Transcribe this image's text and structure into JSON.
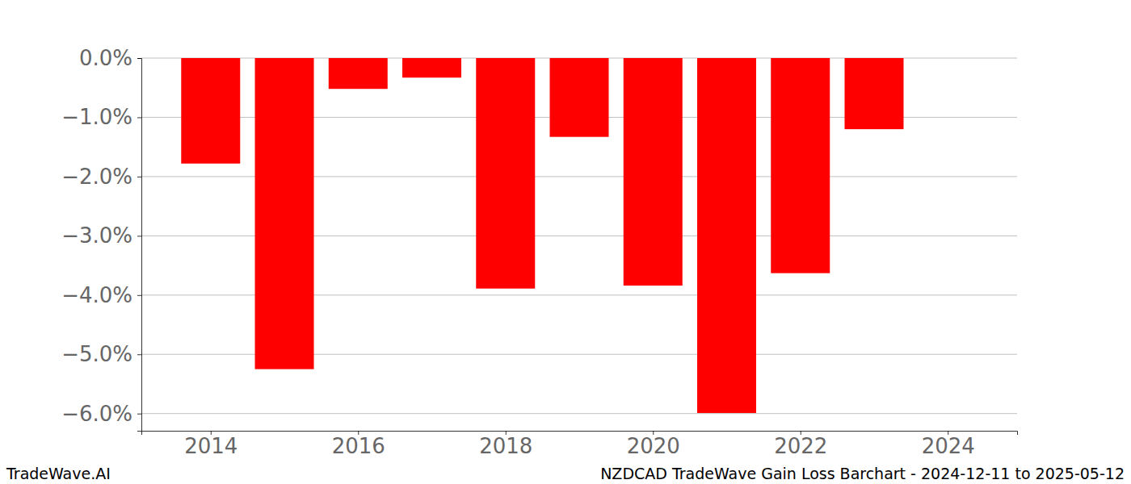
{
  "chart_data": {
    "type": "bar",
    "title": "NZDCAD TradeWave Gain Loss Barchart - 2024-12-11 to 2025-05-12",
    "source": "TradeWave.AI",
    "x": [
      2014,
      2015,
      2016,
      2017,
      2018,
      2019,
      2020,
      2021,
      2022,
      2023
    ],
    "values": [
      -1.78,
      -5.25,
      -0.52,
      -0.33,
      -3.89,
      -1.33,
      -3.84,
      -5.99,
      -3.63,
      -1.2
    ],
    "color": "#ff0000",
    "xlim": [
      2013.06,
      2024.94
    ],
    "xticks": [
      2014,
      2016,
      2018,
      2020,
      2022,
      2024
    ],
    "ylim": [
      -6.29,
      0
    ],
    "yticks": [
      {
        "value": 0,
        "label": "0.0%"
      },
      {
        "value": -1,
        "label": "−1.0%"
      },
      {
        "value": -2,
        "label": "−2.0%"
      },
      {
        "value": -3,
        "label": "−3.0%"
      },
      {
        "value": -4,
        "label": "−4.0%"
      },
      {
        "value": -5,
        "label": "−5.0%"
      },
      {
        "value": -6,
        "label": "−6.0%"
      }
    ],
    "grid": true
  }
}
